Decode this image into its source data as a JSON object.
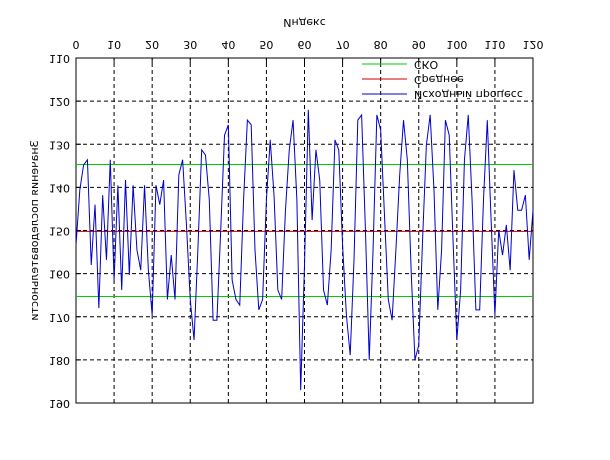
{
  "chart_data": {
    "type": "line",
    "x_label": "Индекс",
    "y_label": "Значения последовательности",
    "xlim": [
      0,
      120
    ],
    "xticks": [
      0,
      10,
      20,
      30,
      40,
      50,
      60,
      70,
      80,
      90,
      100,
      110,
      120
    ],
    "ylim": [
      110,
      190
    ],
    "yticks": [
      110,
      120,
      130,
      140,
      150,
      160,
      170,
      180,
      190
    ],
    "grid": true,
    "legend": "lower right",
    "flipped": "vertical",
    "hlines": [
      {
        "name": "СКО",
        "color": "#00cc00",
        "values": [
          134.7,
          165.3
        ]
      },
      {
        "name": "Среднее",
        "color": "#cc0000",
        "values": [
          150.2
        ]
      }
    ],
    "series": [
      {
        "name": "Исходный процесс",
        "color": "#0000cc",
        "x": [
          0,
          1,
          2,
          3,
          4,
          5,
          6,
          7,
          8,
          9,
          10,
          11,
          12,
          13,
          14,
          15,
          16,
          17,
          18,
          19,
          20,
          21,
          22,
          23,
          24,
          25,
          26,
          27,
          28,
          29,
          30,
          31,
          32,
          33,
          34,
          35,
          36,
          37,
          38,
          39,
          40,
          41,
          42,
          43,
          44,
          45,
          46,
          47,
          48,
          49,
          50,
          51,
          52,
          53,
          54,
          55,
          56,
          57,
          58,
          59,
          60,
          61,
          62,
          63,
          64,
          65,
          66,
          67,
          68,
          69,
          70,
          71,
          72,
          73,
          74,
          75,
          76,
          77,
          78,
          79,
          80,
          81,
          82,
          83,
          84,
          85,
          86,
          87,
          88,
          89,
          90,
          91,
          92,
          93,
          94,
          95,
          96,
          97,
          98,
          99,
          100,
          101,
          102,
          103,
          104,
          105,
          106,
          107,
          108,
          109,
          110,
          111,
          112,
          113,
          114,
          115,
          116,
          117,
          118,
          119,
          120
        ],
        "values": [
          153.4,
          140.6,
          134.8,
          133.6,
          158,
          144,
          168,
          141.8,
          156.8,
          133.6,
          161.5,
          139.5,
          163.8,
          138.3,
          160.3,
          139.5,
          154.5,
          159.2,
          139.5,
          159.2,
          169.6,
          139.5,
          144,
          138.3,
          166,
          155.7,
          166,
          137.1,
          133.6,
          148.7,
          166,
          175.4,
          154.5,
          131.3,
          132.5,
          142.9,
          170.8,
          170.8,
          149.9,
          127.9,
          125.5,
          161.5,
          166,
          167.3,
          142.9,
          124.4,
          125.5,
          154.5,
          168.4,
          166,
          142.9,
          129,
          141.8,
          163.8,
          166,
          145.3,
          131.3,
          124.4,
          142.9,
          187,
          158,
          122,
          147.6,
          131.3,
          138.3,
          163.8,
          167.3,
          154.5,
          129,
          131.3,
          153.4,
          169.6,
          178.9,
          156.8,
          124.4,
          123.2,
          149.9,
          180,
          154.5,
          123.2,
          126.7,
          146.4,
          166,
          170.8,
          154.5,
          137.1,
          124.4,
          133.6,
          159.2,
          180,
          176.6,
          152.2,
          130.2,
          123.2,
          140.6,
          168.4,
          154.5,
          124.4,
          127.9,
          152.2,
          175.4,
          163.8,
          133.6,
          123.2,
          142.9,
          168.4,
          168.4,
          142.9,
          124.4,
          147.6,
          169.6,
          149.9,
          155.7,
          148.7,
          159.2,
          136,
          145.3,
          145.3,
          141.8,
          156.8,
          145.3
        ]
      }
    ]
  }
}
